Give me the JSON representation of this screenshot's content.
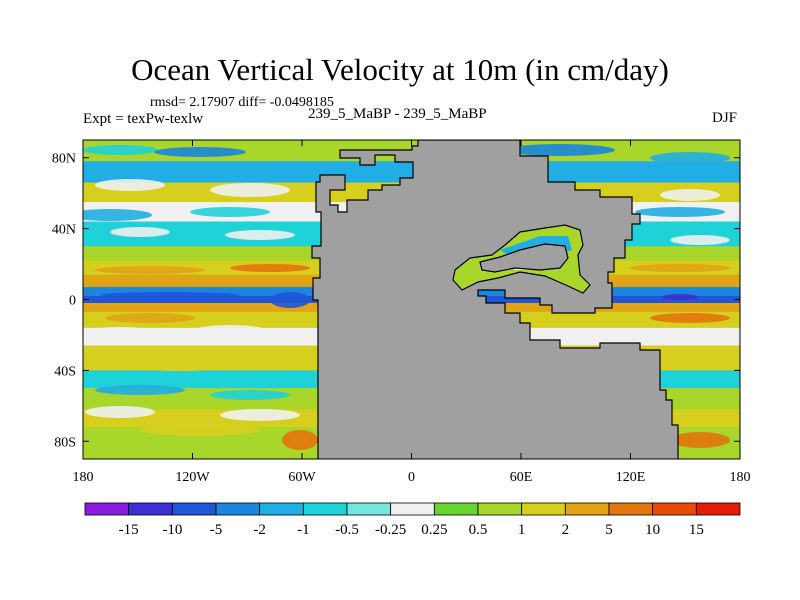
{
  "header": {
    "title": "Ocean Vertical Velocity at 10m (in cm/day)",
    "stats": "rmsd= 2.17907 diff= -0.0498185",
    "expt": "Expt = texPw-texlw",
    "cases": "239_5_MaBP - 239_5_MaBP",
    "season": "DJF"
  },
  "chart_data": {
    "type": "heatmap",
    "title": "Ocean Vertical Velocity at 10m (in cm/day)",
    "xlabel": "",
    "ylabel": "",
    "xlim": [
      -180,
      180
    ],
    "ylim": [
      -90,
      90
    ],
    "x_ticks": [
      -180,
      -120,
      -60,
      0,
      60,
      120,
      180
    ],
    "x_tick_labels": [
      "180",
      "120W",
      "60W",
      "0",
      "60E",
      "120E",
      "180"
    ],
    "y_ticks": [
      80,
      40,
      0,
      -40,
      -80
    ],
    "y_tick_labels": [
      "80N",
      "40N",
      "0",
      "40S",
      "80S"
    ],
    "colorbar": {
      "levels": [
        -15,
        -10,
        -5,
        -2,
        -1,
        -0.5,
        -0.25,
        0.25,
        0.5,
        1,
        2,
        5,
        10,
        15
      ],
      "labels": [
        "-15",
        "-10",
        "-5",
        "-2",
        "-1",
        "-0.5",
        "-0.25",
        "0.25",
        "0.5",
        "1",
        "2",
        "5",
        "10",
        "15"
      ],
      "colors": [
        "#8a1de0",
        "#3d2fd6",
        "#1f57d8",
        "#1a86dd",
        "#20aee4",
        "#1fd2d8",
        "#74e6dc",
        "#f0f0f0",
        "#66d431",
        "#a8d62b",
        "#d7cf1e",
        "#e0a414",
        "#e2760c",
        "#e84a08",
        "#e41e06"
      ]
    },
    "land_color": "#a0a0a0",
    "bands": [
      {
        "lat": [
          78,
          88
        ],
        "value": 0.7
      },
      {
        "lat": [
          66,
          78
        ],
        "value": -1.5
      },
      {
        "lat": [
          55,
          66
        ],
        "value": 1.2
      },
      {
        "lat": [
          44,
          55
        ],
        "value": 0.1
      },
      {
        "lat": [
          30,
          44
        ],
        "value": -0.8
      },
      {
        "lat": [
          22,
          30
        ],
        "value": 0.8
      },
      {
        "lat": [
          14,
          22
        ],
        "value": 1.5
      },
      {
        "lat": [
          7,
          14
        ],
        "value": 3.5
      },
      {
        "lat": [
          2,
          7
        ],
        "value": -2.5
      },
      {
        "lat": [
          -2,
          2
        ],
        "value": -6
      },
      {
        "lat": [
          -7,
          -2
        ],
        "value": 3.5
      },
      {
        "lat": [
          -16,
          -7
        ],
        "value": 1.2
      },
      {
        "lat": [
          -26,
          -16
        ],
        "value": 0.1
      },
      {
        "lat": [
          -40,
          -26
        ],
        "value": 1.4
      },
      {
        "lat": [
          -50,
          -40
        ],
        "value": -0.8
      },
      {
        "lat": [
          -62,
          -50
        ],
        "value": 0.7
      },
      {
        "lat": [
          -72,
          -62
        ],
        "value": 1.5
      },
      {
        "lat": [
          -86,
          -72
        ],
        "value": 0.7
      }
    ]
  }
}
